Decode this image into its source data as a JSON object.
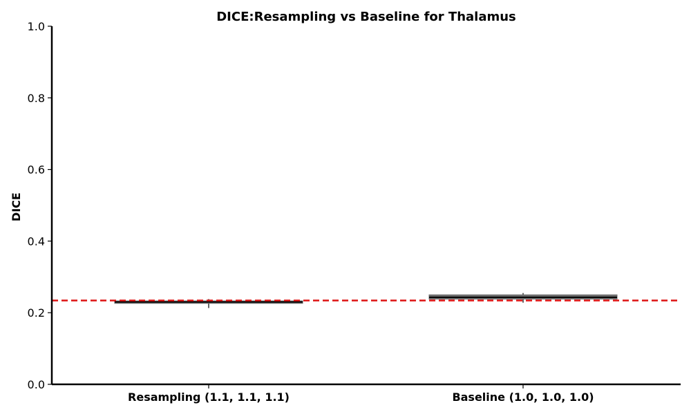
{
  "chart_data": {
    "type": "box",
    "title": "DICE:Resampling vs Baseline for Thalamus",
    "xlabel": "",
    "ylabel": "DICE",
    "ylim": [
      0.0,
      1.0
    ],
    "yticks": [
      "0.0",
      "0.2",
      "0.4",
      "0.6",
      "0.8",
      "1.0"
    ],
    "categories": [
      "Resampling (1.1, 1.1, 1.1)",
      "Baseline (1.0, 1.0, 1.0)"
    ],
    "boxes": [
      {
        "category": "Resampling (1.1, 1.1, 1.1)",
        "whisker_low": 0.213,
        "q1": 0.226,
        "median": 0.23,
        "q3": 0.233,
        "whisker_high": 0.238
      },
      {
        "category": "Baseline (1.0, 1.0, 1.0)",
        "whisker_low": 0.228,
        "q1": 0.238,
        "median": 0.243,
        "q3": 0.25,
        "whisker_high": 0.255
      }
    ],
    "reference_line": {
      "value": 0.234,
      "style": "dashed",
      "color": "#dd1111"
    },
    "box_color": "#6e6e6e",
    "median_color": "#000000",
    "grid": false,
    "legend": "none"
  }
}
